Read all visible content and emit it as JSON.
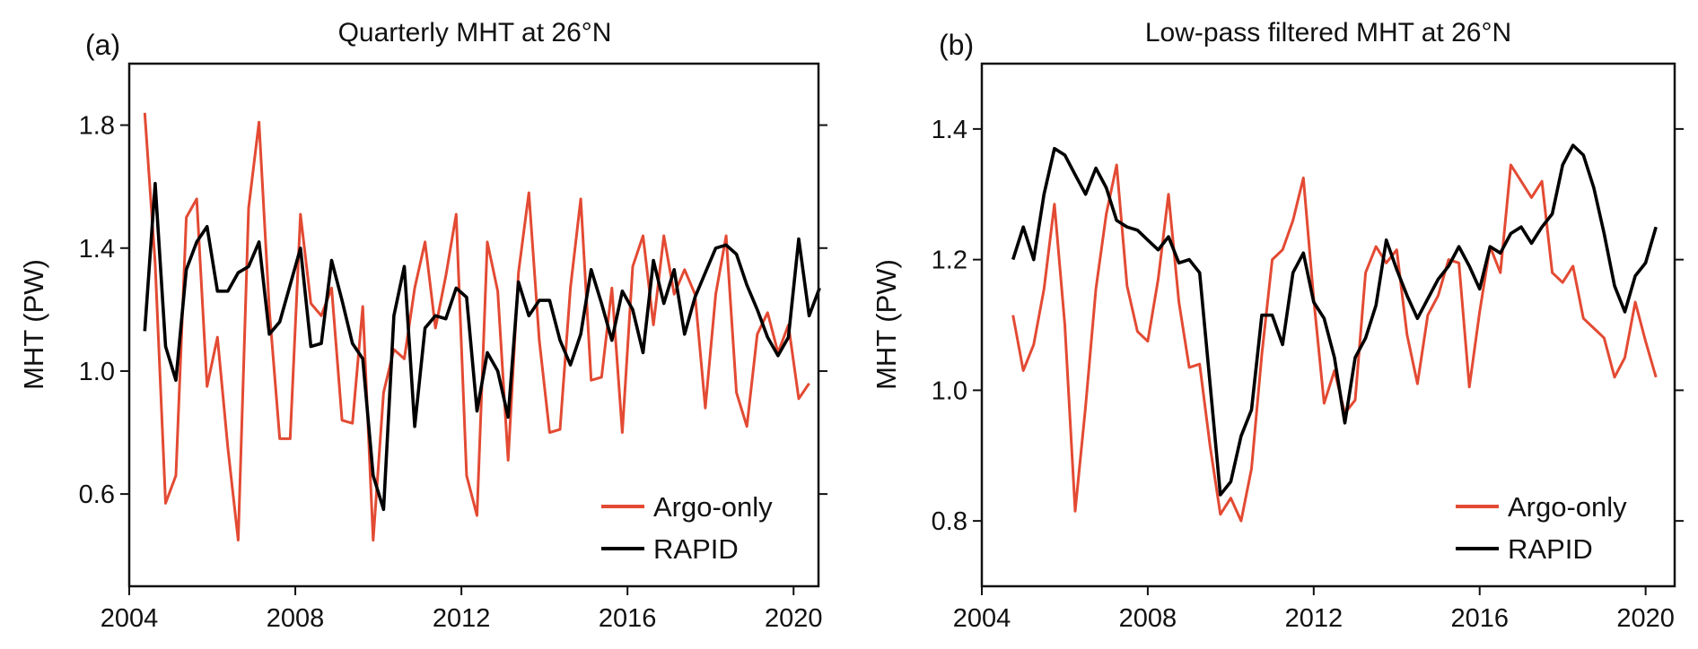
{
  "chart_data": [
    {
      "type": "line",
      "panel_label": "(a)",
      "title": "Quarterly MHT at 26°N",
      "xlabel": "",
      "ylabel": "MHT (PW)",
      "xlim": [
        2004,
        2020.6
      ],
      "ylim": [
        0.3,
        2.0
      ],
      "xticks": [
        2004,
        2008,
        2012,
        2016,
        2020
      ],
      "xtick_labels": [
        "2004",
        "2008",
        "2012",
        "2016",
        "2020"
      ],
      "yticks": [
        0.6,
        1.0,
        1.4,
        1.8
      ],
      "ytick_labels": [
        "0.6",
        "1.0",
        "1.4",
        "1.8"
      ],
      "grid": false,
      "legend_position": "lower-right",
      "x_start": 2004.375,
      "x_step": 0.25,
      "series": [
        {
          "name": "Argo-only",
          "color": "#e34a33",
          "values": [
            1.84,
            1.35,
            0.57,
            0.66,
            1.5,
            1.56,
            0.95,
            1.11,
            0.75,
            0.45,
            1.53,
            1.81,
            1.2,
            0.78,
            0.78,
            1.51,
            1.22,
            1.18,
            1.27,
            0.84,
            0.83,
            1.21,
            0.45,
            0.93,
            1.07,
            1.04,
            1.27,
            1.42,
            1.14,
            1.31,
            1.51,
            0.66,
            0.53,
            1.42,
            1.26,
            0.71,
            1.32,
            1.58,
            1.1,
            0.8,
            0.81,
            1.27,
            1.56,
            0.97,
            0.98,
            1.27,
            0.8,
            1.34,
            1.44,
            1.15,
            1.44,
            1.25,
            1.33,
            1.25,
            0.88,
            1.25,
            1.44,
            0.93,
            0.82,
            1.12,
            1.19,
            1.06,
            1.15,
            0.91,
            0.96
          ]
        },
        {
          "name": "RAPID",
          "color": "#000000",
          "values": [
            1.13,
            1.61,
            1.08,
            0.97,
            1.33,
            1.42,
            1.47,
            1.26,
            1.26,
            1.32,
            1.34,
            1.42,
            1.12,
            1.16,
            1.28,
            1.4,
            1.08,
            1.09,
            1.36,
            1.23,
            1.09,
            1.04,
            0.66,
            0.55,
            1.18,
            1.34,
            0.82,
            1.14,
            1.18,
            1.17,
            1.27,
            1.24,
            0.87,
            1.06,
            1.0,
            0.85,
            1.29,
            1.18,
            1.23,
            1.23,
            1.1,
            1.02,
            1.12,
            1.33,
            1.22,
            1.1,
            1.26,
            1.2,
            1.06,
            1.36,
            1.22,
            1.33,
            1.12,
            1.24,
            1.32,
            1.4,
            1.41,
            1.38,
            1.28,
            1.2,
            1.11,
            1.05,
            1.11,
            1.43,
            1.18,
            1.27
          ]
        }
      ]
    },
    {
      "type": "line",
      "panel_label": "(b)",
      "title": "Low-pass filtered MHT at 26°N",
      "xlabel": "",
      "ylabel": "MHT (PW)",
      "xlim": [
        2004,
        2020.7
      ],
      "ylim": [
        0.7,
        1.5
      ],
      "xticks": [
        2004,
        2008,
        2012,
        2016,
        2020
      ],
      "xtick_labels": [
        "2004",
        "2008",
        "2012",
        "2016",
        "2020"
      ],
      "yticks": [
        0.8,
        1.0,
        1.2,
        1.4
      ],
      "ytick_labels": [
        "0.8",
        "1.0",
        "1.2",
        "1.4"
      ],
      "grid": false,
      "legend_position": "lower-right",
      "x_start": 2004.75,
      "x_step": 0.25,
      "series": [
        {
          "name": "Argo-only",
          "color": "#e34a33",
          "values": [
            1.115,
            1.03,
            1.07,
            1.155,
            1.285,
            1.1,
            0.815,
            0.975,
            1.155,
            1.27,
            1.345,
            1.16,
            1.09,
            1.075,
            1.17,
            1.3,
            1.135,
            1.035,
            1.04,
            0.915,
            0.81,
            0.835,
            0.8,
            0.88,
            1.055,
            1.2,
            1.215,
            1.26,
            1.325,
            1.14,
            0.98,
            1.03,
            0.965,
            0.985,
            1.18,
            1.22,
            1.195,
            1.215,
            1.085,
            1.01,
            1.115,
            1.145,
            1.2,
            1.195,
            1.005,
            1.12,
            1.22,
            1.18,
            1.345,
            1.32,
            1.295,
            1.32,
            1.18,
            1.165,
            1.19,
            1.11,
            1.095,
            1.08,
            1.02,
            1.05,
            1.135,
            1.075,
            1.02
          ]
        },
        {
          "name": "RAPID",
          "color": "#000000",
          "values": [
            1.2,
            1.25,
            1.2,
            1.3,
            1.37,
            1.36,
            1.33,
            1.3,
            1.34,
            1.31,
            1.26,
            1.25,
            1.245,
            1.23,
            1.215,
            1.235,
            1.195,
            1.2,
            1.18,
            1.01,
            0.84,
            0.86,
            0.93,
            0.97,
            1.115,
            1.115,
            1.07,
            1.18,
            1.21,
            1.135,
            1.11,
            1.05,
            0.95,
            1.05,
            1.08,
            1.13,
            1.23,
            1.185,
            1.145,
            1.11,
            1.14,
            1.17,
            1.19,
            1.22,
            1.19,
            1.155,
            1.22,
            1.21,
            1.24,
            1.25,
            1.225,
            1.25,
            1.27,
            1.345,
            1.375,
            1.36,
            1.31,
            1.24,
            1.16,
            1.12,
            1.175,
            1.195,
            1.25
          ]
        }
      ]
    }
  ]
}
